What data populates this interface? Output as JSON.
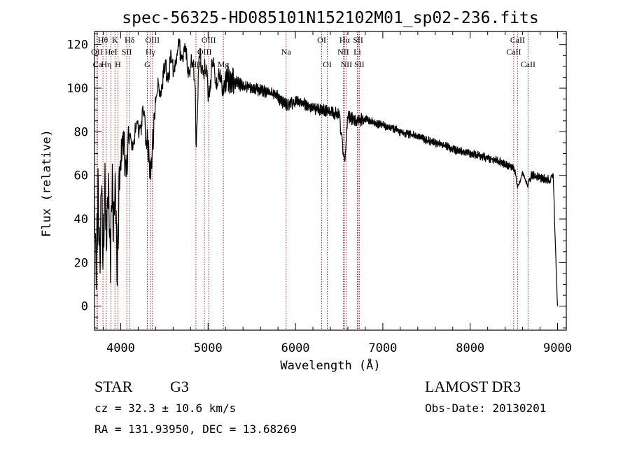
{
  "chart_data": {
    "type": "line",
    "title": "spec-56325-HD085101N152102M01_sp02-236.fits",
    "xlabel": "Wavelength (Å)",
    "ylabel": "Flux (relative)",
    "xlim": [
      3700,
      9100
    ],
    "ylim": [
      -11,
      126
    ],
    "x_ticks": [
      4000,
      5000,
      6000,
      7000,
      8000,
      9000
    ],
    "y_ticks": [
      0,
      20,
      40,
      60,
      80,
      100,
      120
    ],
    "grid": false,
    "series": [
      {
        "name": "flux",
        "color": "#000000",
        "x": [
          3700,
          3720,
          3740,
          3760,
          3780,
          3800,
          3820,
          3840,
          3860,
          3880,
          3900,
          3920,
          3940,
          3960,
          3980,
          4000,
          4050,
          4100,
          4150,
          4200,
          4250,
          4300,
          4340,
          4400,
          4450,
          4500,
          4550,
          4600,
          4650,
          4700,
          4750,
          4800,
          4850,
          4861,
          4900,
          4950,
          5000,
          5050,
          5100,
          5150,
          5200,
          5300,
          5400,
          5500,
          5600,
          5700,
          5800,
          5893,
          6000,
          6100,
          6200,
          6300,
          6400,
          6500,
          6563,
          6600,
          6700,
          6800,
          6900,
          7000,
          7100,
          7200,
          7300,
          7400,
          7500,
          7600,
          7700,
          7800,
          7900,
          8000,
          8100,
          8200,
          8300,
          8400,
          8500,
          8542,
          8600,
          8662,
          8700,
          8800,
          8900,
          8950,
          9000
        ],
        "values": [
          45,
          15,
          50,
          20,
          55,
          25,
          58,
          30,
          60,
          15,
          58,
          35,
          62,
          10,
          55,
          65,
          70,
          72,
          78,
          82,
          86,
          78,
          60,
          95,
          100,
          105,
          110,
          112,
          115,
          118,
          112,
          110,
          108,
          75,
          112,
          110,
          100,
          108,
          105,
          102,
          104,
          103,
          101,
          100,
          99,
          98,
          96,
          92,
          94,
          93,
          91,
          90,
          89,
          88,
          65,
          87,
          85,
          86,
          84,
          83,
          82,
          80,
          79,
          78,
          76,
          75,
          74,
          72,
          71,
          70,
          69,
          68,
          67,
          65,
          64,
          55,
          62,
          56,
          60,
          59,
          58,
          59,
          0
        ]
      }
    ],
    "spectral_lines": [
      {
        "label": "Hθ",
        "x": 3797,
        "row": 0
      },
      {
        "label": "OII",
        "x": 3727,
        "row": 1
      },
      {
        "label": "Ca",
        "x": 3734,
        "row": 2
      },
      {
        "label": "Hη",
        "x": 3835,
        "row": 2
      },
      {
        "label": "HeI",
        "x": 3889,
        "row": 1
      },
      {
        "label": "K",
        "x": 3934,
        "row": 0
      },
      {
        "label": "H",
        "x": 3968,
        "row": 2
      },
      {
        "label": "Hδ",
        "x": 4102,
        "row": 0
      },
      {
        "label": "SII",
        "x": 4070,
        "row": 1
      },
      {
        "label": "OIII",
        "x": 4363,
        "row": 0
      },
      {
        "label": "Hγ",
        "x": 4340,
        "row": 1
      },
      {
        "label": "G",
        "x": 4305,
        "row": 2
      },
      {
        "label": "Hβ",
        "x": 4861,
        "row": 2
      },
      {
        "label": "OIII",
        "x": 5007,
        "row": 0
      },
      {
        "label": "OIII",
        "x": 4959,
        "row": 1
      },
      {
        "label": "Mg",
        "x": 5175,
        "row": 2
      },
      {
        "label": "Na",
        "x": 5893,
        "row": 1
      },
      {
        "label": "OI",
        "x": 6300,
        "row": 0
      },
      {
        "label": "OI",
        "x": 6364,
        "row": 2
      },
      {
        "label": "Hα",
        "x": 6563,
        "row": 0
      },
      {
        "label": "NII",
        "x": 6548,
        "row": 1
      },
      {
        "label": "NII",
        "x": 6583,
        "row": 2
      },
      {
        "label": "SII",
        "x": 6717,
        "row": 0
      },
      {
        "label": "Li",
        "x": 6708,
        "row": 1
      },
      {
        "label": "SII",
        "x": 6731,
        "row": 2
      },
      {
        "label": "CaII",
        "x": 8542,
        "row": 0
      },
      {
        "label": "CaII",
        "x": 8498,
        "row": 1
      },
      {
        "label": "CaII",
        "x": 8662,
        "row": 2
      }
    ]
  },
  "info": {
    "object_class": "STAR",
    "subclass": "G3",
    "survey": "LAMOST DR3",
    "redshift_text": "cz = 32.3 ± 10.6 km/s",
    "obs_date": "Obs-Date: 20130201",
    "coords_text": "RA = 131.93950, DEC =  13.68269"
  },
  "colors": {
    "line_marker": "#b22222",
    "spectrum": "#000000"
  }
}
